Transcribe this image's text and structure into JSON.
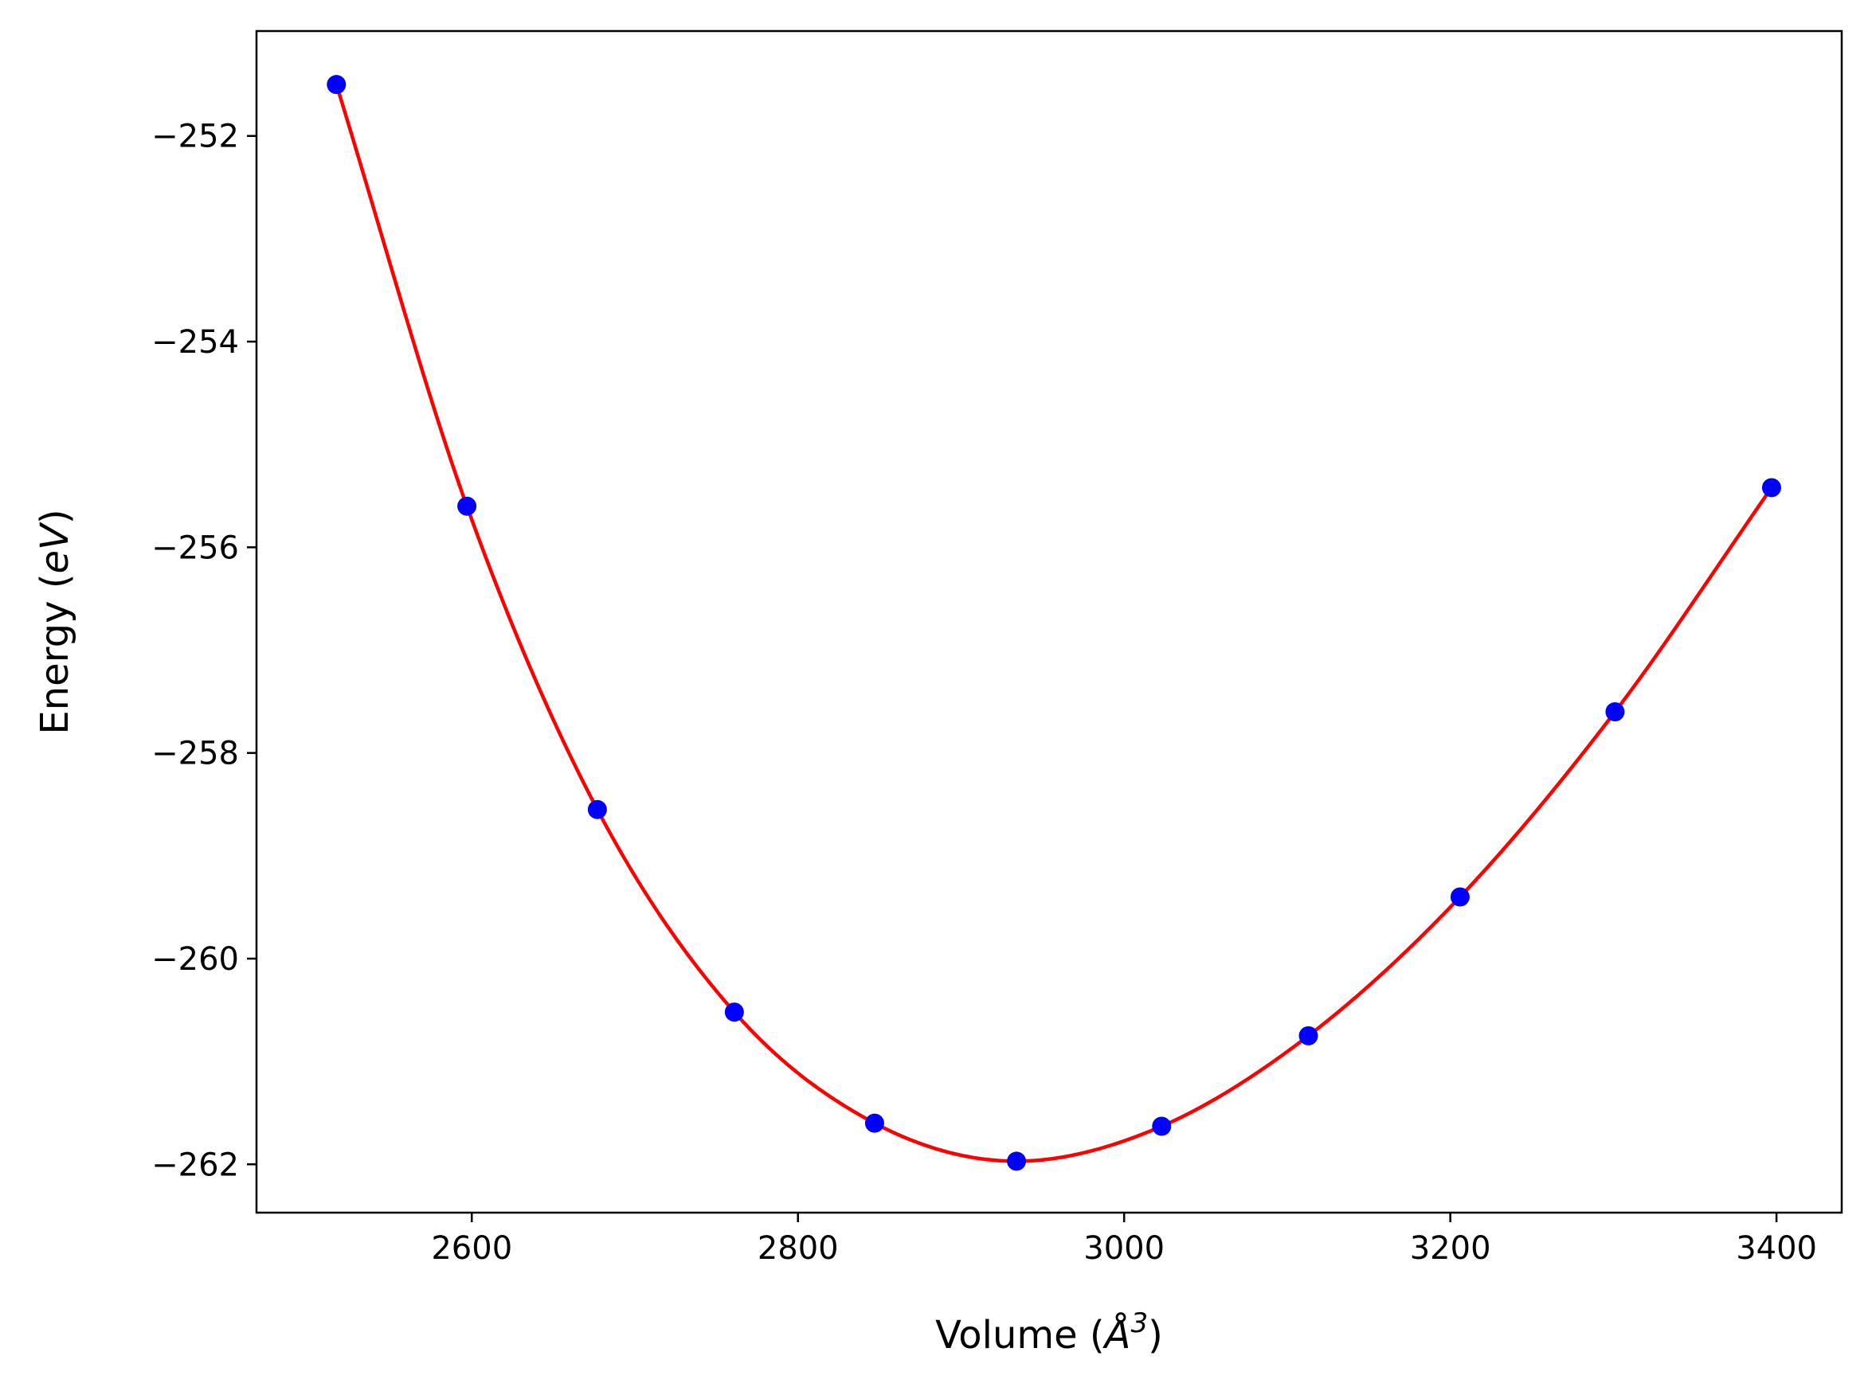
{
  "chart_data": {
    "type": "scatter",
    "title": "",
    "xlabel": {
      "prefix": "Volume (",
      "symbol": "Å",
      "sup": "3",
      "suffix": ")"
    },
    "ylabel": {
      "prefix": "Energy (",
      "unit": "eV",
      "suffix": ")"
    },
    "xlim": [
      2468,
      3440
    ],
    "ylim": [
      -262.47,
      -250.98
    ],
    "xticks": [
      2600,
      2800,
      3000,
      3200,
      3400
    ],
    "yticks": [
      -252,
      -254,
      -256,
      -258,
      -260,
      -262
    ],
    "xtick_labels": [
      "2600",
      "2800",
      "3000",
      "3200",
      "3400"
    ],
    "ytick_labels": [
      "−252",
      "−254",
      "−256",
      "−258",
      "−260",
      "−262"
    ],
    "grid": false,
    "series": [
      {
        "kind": "points",
        "color": "#0000ff",
        "x": [
          2517,
          2597,
          2677,
          2761,
          2847,
          2934,
          3023,
          3113,
          3206,
          3301,
          3397
        ],
        "y": [
          -251.5,
          -255.6,
          -258.55,
          -260.52,
          -261.6,
          -261.97,
          -261.63,
          -260.75,
          -259.4,
          -257.6,
          -255.42
        ]
      },
      {
        "kind": "fit-curve",
        "color": "#ff0000",
        "x": [
          2517,
          2597,
          2677,
          2761,
          2847,
          2934,
          3023,
          3113,
          3206,
          3301,
          3397
        ],
        "y": [
          -251.5,
          -255.6,
          -258.55,
          -260.52,
          -261.6,
          -261.97,
          -261.63,
          -260.75,
          -259.4,
          -257.6,
          -255.42
        ]
      }
    ]
  }
}
